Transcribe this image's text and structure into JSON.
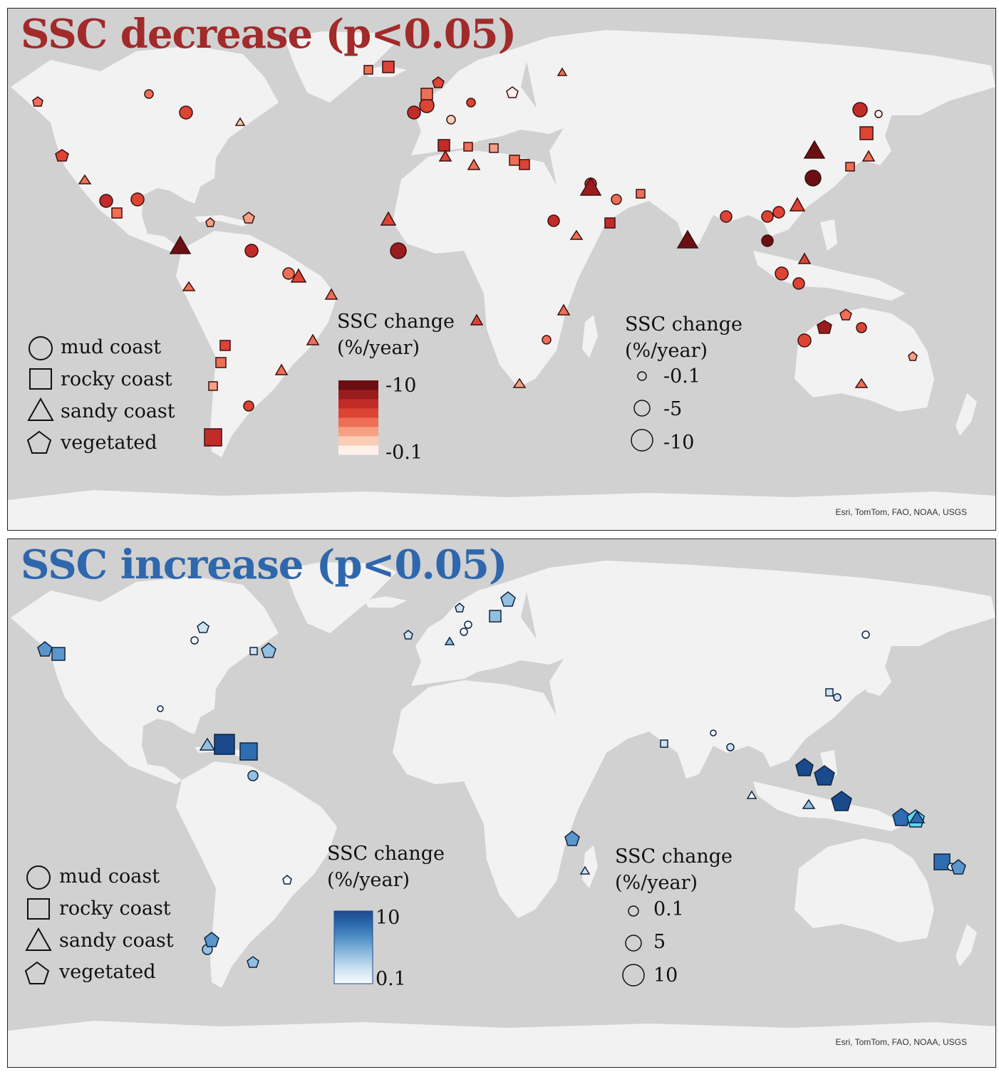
{
  "panels": [
    {
      "id": "decrease",
      "title": "SSC decrease (p<0.05)",
      "title_color": "#a12a2b",
      "shape_legend": [
        "mud coast",
        "rocky coast",
        "sandy coast",
        "vegetated"
      ],
      "color_legend": {
        "title_line1": "SSC change",
        "title_line2": "(%/year)",
        "max_label": "-10",
        "min_label": "-0.1",
        "colors": [
          "#fff0ea",
          "#fbcdb5",
          "#f5a083",
          "#ee6f55",
          "#dc4434",
          "#c12c28",
          "#9b1c1f",
          "#6b0f13"
        ]
      },
      "size_legend": {
        "title_line1": "SSC change",
        "title_line2": "(%/year)",
        "labels": [
          "-0.1",
          "-5",
          "-10"
        ]
      },
      "attribution": "Esri, TomTom, FAO, NOAA, USGS"
    },
    {
      "id": "increase",
      "title": "SSC increase (p<0.05)",
      "title_color": "#2f67ad",
      "shape_legend": [
        "mud coast",
        "rocky coast",
        "sandy coast",
        "vegetated"
      ],
      "color_legend": {
        "title_line1": "SSC change",
        "title_line2": "(%/year)",
        "max_label": "10",
        "min_label": "0.1",
        "colors": [
          "#f6faff",
          "#cfe1f2",
          "#93bfe0",
          "#5a96cb",
          "#2f6db2",
          "#1a4a8c"
        ]
      },
      "size_legend": {
        "title_line1": "SSC change",
        "title_line2": "(%/year)",
        "labels": [
          "0.1",
          "5",
          "10"
        ]
      },
      "attribution": "Esri, TomTom, FAO, NOAA, USGS"
    }
  ]
}
